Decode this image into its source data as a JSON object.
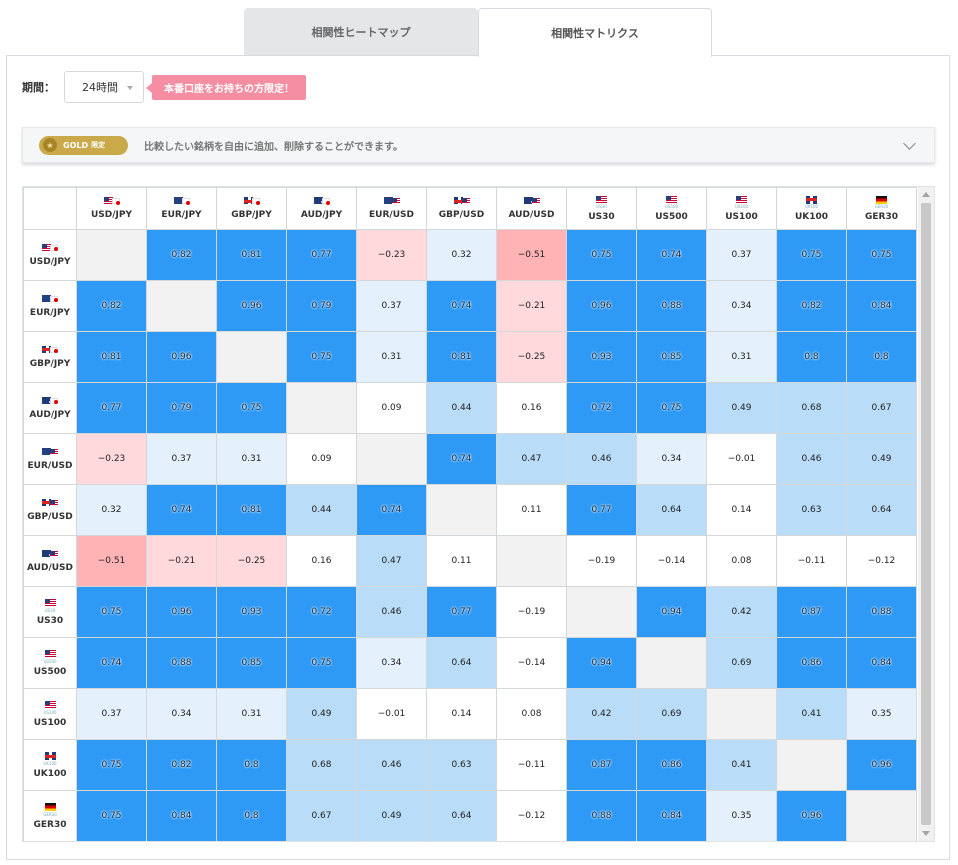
{
  "tabs": [
    {
      "label": "相関性ヒートマップ",
      "active": false
    },
    {
      "label": "相関性マトリクス",
      "active": true
    }
  ],
  "period": {
    "label": "期間：",
    "selected": "24時間",
    "badge": "本番口座をお持ちの方限定！"
  },
  "gold": {
    "pill_label": "GOLD",
    "pill_tag": "限定",
    "message": "比較したい銘柄を自由に追加、削除することができます。"
  },
  "colors": {
    "strong_positive": "#2e9af6",
    "mid_positive": "#b9dcf9",
    "weak_positive": "#e4f1fc",
    "neutral": "#ffffff",
    "weak_negative": "#ffd9dc",
    "mid_negative": "#ffb3b5",
    "diagonal": "#f2f2f2",
    "badge": "#f58ea3",
    "gold": "#c9a94a"
  },
  "symbols": [
    {
      "label": "USD/JPY",
      "flags": [
        "us",
        "jp"
      ],
      "sub": ""
    },
    {
      "label": "EUR/JPY",
      "flags": [
        "eu",
        "jp"
      ],
      "sub": ""
    },
    {
      "label": "GBP/JPY",
      "flags": [
        "gb",
        "jp"
      ],
      "sub": ""
    },
    {
      "label": "AUD/JPY",
      "flags": [
        "au",
        "jp"
      ],
      "sub": ""
    },
    {
      "label": "EUR/USD",
      "flags": [
        "eu",
        "us"
      ],
      "sub": ""
    },
    {
      "label": "GBP/USD",
      "flags": [
        "gb",
        "us"
      ],
      "sub": ""
    },
    {
      "label": "AUD/USD",
      "flags": [
        "au",
        "us"
      ],
      "sub": ""
    },
    {
      "label": "US30",
      "flags": [
        "us"
      ],
      "sub": "US30"
    },
    {
      "label": "US500",
      "flags": [
        "us"
      ],
      "sub": "US500"
    },
    {
      "label": "US100",
      "flags": [
        "us"
      ],
      "sub": "US100"
    },
    {
      "label": "UK100",
      "flags": [
        "gb"
      ],
      "sub": "UK100"
    },
    {
      "label": "GER30",
      "flags": [
        "de"
      ],
      "sub": "GER30"
    }
  ],
  "matrix": [
    [
      null,
      "0.82",
      "0.81",
      "0.77",
      "−0.23",
      "0.32",
      "−0.51",
      "0.75",
      "0.74",
      "0.37",
      "0.75",
      "0.75"
    ],
    [
      "0.82",
      null,
      "0.96",
      "0.79",
      "0.37",
      "0.74",
      "−0.21",
      "0.96",
      "0.88",
      "0.34",
      "0.82",
      "0.84"
    ],
    [
      "0.81",
      "0.96",
      null,
      "0.75",
      "0.31",
      "0.81",
      "−0.25",
      "0.93",
      "0.85",
      "0.31",
      "0.8",
      "0.8"
    ],
    [
      "0.77",
      "0.79",
      "0.75",
      null,
      "0.09",
      "0.44",
      "0.16",
      "0.72",
      "0.75",
      "0.49",
      "0.68",
      "0.67"
    ],
    [
      "−0.23",
      "0.37",
      "0.31",
      "0.09",
      null,
      "0.74",
      "0.47",
      "0.46",
      "0.34",
      "−0.01",
      "0.46",
      "0.49"
    ],
    [
      "0.32",
      "0.74",
      "0.81",
      "0.44",
      "0.74",
      null,
      "0.11",
      "0.77",
      "0.64",
      "0.14",
      "0.63",
      "0.64"
    ],
    [
      "−0.51",
      "−0.21",
      "−0.25",
      "0.16",
      "0.47",
      "0.11",
      null,
      "−0.19",
      "−0.14",
      "0.08",
      "−0.11",
      "−0.12"
    ],
    [
      "0.75",
      "0.96",
      "0.93",
      "0.72",
      "0.46",
      "0.77",
      "−0.19",
      null,
      "0.94",
      "0.42",
      "0.87",
      "0.88"
    ],
    [
      "0.74",
      "0.88",
      "0.85",
      "0.75",
      "0.34",
      "0.64",
      "−0.14",
      "0.94",
      null,
      "0.69",
      "0.86",
      "0.84"
    ],
    [
      "0.37",
      "0.34",
      "0.31",
      "0.49",
      "−0.01",
      "0.14",
      "0.08",
      "0.42",
      "0.69",
      null,
      "0.41",
      "0.35"
    ],
    [
      "0.75",
      "0.82",
      "0.8",
      "0.68",
      "0.46",
      "0.63",
      "−0.11",
      "0.87",
      "0.86",
      "0.41",
      null,
      "0.96"
    ],
    [
      "0.75",
      "0.84",
      "0.8",
      "0.67",
      "0.49",
      "0.64",
      "−0.12",
      "0.88",
      "0.84",
      "0.35",
      "0.96",
      null
    ]
  ]
}
